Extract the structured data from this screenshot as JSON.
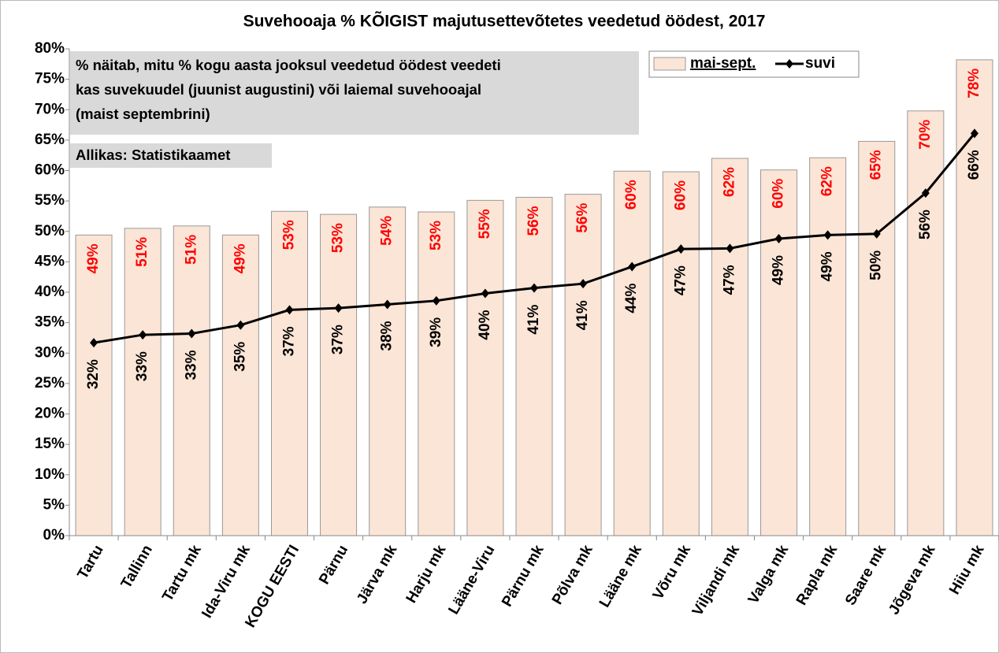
{
  "chart_data": {
    "type": "bar_line",
    "title": "Suvehooaja % KÕIGIST majutusettevõtetes veedetud öödest, 2017",
    "annotations": [
      "% näitab, mitu % kogu aasta jooksul veedetud öödest veedeti",
      "kas suvekuudel (juunist augustini) või laiemal suvehooajal",
      "(maist septembrini)",
      "Allikas: Statistikaamet"
    ],
    "categories": [
      "Tartu",
      "Tallinn",
      "Tartu mk",
      "Ida-Viru mk",
      "KOGU EESTI",
      "Pärnu",
      "Järva mk",
      "Harju mk",
      "Lääne-Viru",
      "Pärnu mk",
      "Põlva mk",
      "Lääne mk",
      "Võru mk",
      "Viljandi mk",
      "Valga mk",
      "Rapla mk",
      "Saare mk",
      "Jõgeva mk",
      "Hiiu mk"
    ],
    "series": [
      {
        "name": "mai-sept.",
        "type": "bar",
        "color": "#fbe5d6",
        "label_color": "#ff0000",
        "values": [
          49.4,
          50.5,
          50.9,
          49.4,
          53.3,
          52.8,
          54.0,
          53.2,
          55.1,
          55.6,
          56.1,
          59.9,
          59.8,
          62.0,
          60.1,
          62.1,
          64.8,
          69.8,
          78.2
        ],
        "value_labels": [
          "49%",
          "51%",
          "51%",
          "49%",
          "53%",
          "53%",
          "54%",
          "53%",
          "55%",
          "56%",
          "56%",
          "60%",
          "60%",
          "62%",
          "60%",
          "62%",
          "65%",
          "70%",
          "78%"
        ]
      },
      {
        "name": "suvi",
        "type": "line",
        "color": "#000000",
        "label_color": "#000000",
        "values": [
          31.7,
          33.0,
          33.2,
          34.6,
          37.1,
          37.4,
          38.0,
          38.6,
          39.8,
          40.7,
          41.4,
          44.2,
          47.1,
          47.2,
          48.8,
          49.4,
          49.6,
          56.3,
          66.1
        ],
        "value_labels": [
          "32%",
          "33%",
          "33%",
          "35%",
          "37%",
          "37%",
          "38%",
          "39%",
          "40%",
          "41%",
          "41%",
          "44%",
          "47%",
          "47%",
          "49%",
          "49%",
          "50%",
          "56%",
          "66%"
        ]
      }
    ],
    "ylim": [
      0,
      80
    ],
    "yticks": [
      {
        "value": 0,
        "label": "0%"
      },
      {
        "value": 5,
        "label": "5%"
      },
      {
        "value": 10,
        "label": "10%"
      },
      {
        "value": 15,
        "label": "15%"
      },
      {
        "value": 20,
        "label": "20%"
      },
      {
        "value": 25,
        "label": "25%"
      },
      {
        "value": 30,
        "label": "30%"
      },
      {
        "value": 35,
        "label": "35%"
      },
      {
        "value": 40,
        "label": "40%"
      },
      {
        "value": 45,
        "label": "45%"
      },
      {
        "value": 50,
        "label": "50%"
      },
      {
        "value": 55,
        "label": "55%"
      },
      {
        "value": 60,
        "label": "60%"
      },
      {
        "value": 65,
        "label": "65%"
      },
      {
        "value": 70,
        "label": "70%"
      },
      {
        "value": 75,
        "label": "75%"
      },
      {
        "value": 80,
        "label": "80%"
      }
    ],
    "grid": false,
    "legend": "top-right"
  }
}
